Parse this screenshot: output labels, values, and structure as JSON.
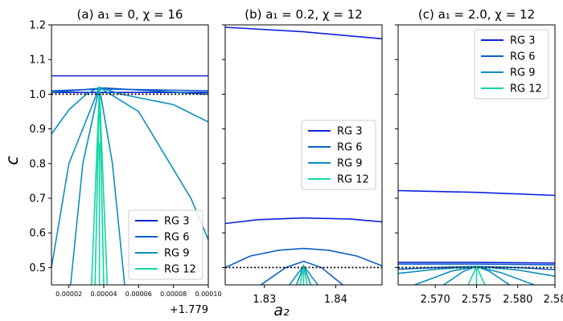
{
  "chart_data": [
    {
      "type": "line",
      "title": "(a) a₁ = 0, χ = 16",
      "ylabel": "c",
      "xlabel": "",
      "x_offset_label": "+1.779",
      "xlim": [
        1e-05,
        0.0001
      ],
      "ylim": [
        0.45,
        1.2
      ],
      "x_ticks": [
        "0.00002",
        "0.00004",
        "0.00006",
        "0.00008",
        "0.00010"
      ],
      "y_ticks": [
        "0.5",
        "0.6",
        "0.7",
        "0.8",
        "0.9",
        "1.0",
        "1.1",
        "1.2"
      ],
      "legend": [
        "RG 3",
        "RG 6",
        "RG 9",
        "RG 12"
      ],
      "legend_position": "lower-right",
      "reference_line_y": 1.0,
      "series": [
        {
          "name": "RG 3",
          "color": "#0b20e0",
          "x": [
            1e-05,
            0.0001
          ],
          "y": [
            1.053,
            1.053
          ]
        },
        {
          "name": "RG 3",
          "color": "#0b20e0",
          "x": [
            1e-05,
            0.0001
          ],
          "y": [
            1.005,
            1.005
          ]
        },
        {
          "name": "RG 6",
          "color": "#0a5fc8",
          "x": [
            1e-05,
            4e-05,
            0.0001
          ],
          "y": [
            1.01,
            1.015,
            1.01
          ]
        },
        {
          "name": "RG 6",
          "color": "#0a5fc8",
          "x": [
            1e-05,
            4e-05,
            0.0001
          ],
          "y": [
            1.005,
            1.018,
            1.0
          ]
        },
        {
          "name": "RG 9",
          "color": "#0a8fc0",
          "x": [
            1e-05,
            2e-05,
            3e-05,
            3.75e-05,
            5e-05,
            8e-05,
            0.0001
          ],
          "y": [
            0.885,
            0.955,
            1.0,
            1.02,
            1.0,
            0.97,
            0.92
          ]
        },
        {
          "name": "RG 9",
          "color": "#0a8fc0",
          "x": [
            1e-05,
            2e-05,
            3.75e-05,
            6e-05,
            9e-05,
            0.0001
          ],
          "y": [
            0.5,
            0.8,
            1.02,
            0.95,
            0.7,
            0.58
          ]
        },
        {
          "name": "RG 9",
          "color": "#0a8fc0",
          "x": [
            2.1e-05,
            2.8e-05,
            3.75e-05,
            4.5e-05,
            5.2e-05
          ],
          "y": [
            0.45,
            0.8,
            1.02,
            0.8,
            0.45
          ]
        },
        {
          "name": "RG 12",
          "color": "#11d6a6",
          "x": [
            3.3e-05,
            3.75e-05,
            4.2e-05
          ],
          "y": [
            0.45,
            1.02,
            0.45
          ]
        },
        {
          "name": "RG 12",
          "color": "#11d6a6",
          "x": [
            3.5e-05,
            3.75e-05,
            4e-05
          ],
          "y": [
            0.45,
            1.02,
            0.45
          ]
        },
        {
          "name": "RG 12",
          "color": "#11d6a6",
          "x": [
            3.75e-05,
            3.75e-05
          ],
          "y": [
            0.45,
            0.86
          ]
        }
      ]
    },
    {
      "type": "line",
      "title": "(b) a₁ = 0.2, χ = 12",
      "xlabel": "a₂",
      "ylabel": "",
      "xlim": [
        1.8245,
        1.8465
      ],
      "ylim": [
        0.45,
        1.2
      ],
      "x_ticks": [
        "1.83",
        "1.84"
      ],
      "legend": [
        "RG 3",
        "RG 6",
        "RG 9",
        "RG 12"
      ],
      "legend_position": "center-right",
      "reference_line_y": 0.5,
      "series": [
        {
          "name": "RG 3",
          "color": "#0b20e0",
          "x": [
            1.8245,
            1.8355,
            1.8465
          ],
          "y": [
            1.193,
            1.18,
            1.16
          ]
        },
        {
          "name": "RG 3",
          "color": "#0b20e0",
          "x": [
            1.8245,
            1.829,
            1.8355,
            1.842,
            1.8465
          ],
          "y": [
            0.627,
            0.638,
            0.643,
            0.64,
            0.632
          ]
        },
        {
          "name": "RG 6",
          "color": "#0a5fc8",
          "x": [
            1.8245,
            1.828,
            1.832,
            1.8355,
            1.839,
            1.843,
            1.8465
          ],
          "y": [
            0.5,
            0.533,
            0.55,
            0.555,
            0.55,
            0.533,
            0.505
          ]
        },
        {
          "name": "RG 6",
          "color": "#0a5fc8",
          "x": [
            1.8295,
            1.833,
            1.8355,
            1.838,
            1.841
          ],
          "y": [
            0.45,
            0.5,
            0.518,
            0.5,
            0.45
          ]
        },
        {
          "name": "RG 9",
          "color": "#0a8fc0",
          "x": [
            1.8335,
            1.8355,
            1.8375
          ],
          "y": [
            0.45,
            0.505,
            0.45
          ]
        },
        {
          "name": "RG 9",
          "color": "#0a8fc0",
          "x": [
            1.8345,
            1.8355,
            1.8365
          ],
          "y": [
            0.45,
            0.505,
            0.45
          ]
        },
        {
          "name": "RG 12",
          "color": "#11d6a6",
          "x": [
            1.835,
            1.8355,
            1.836
          ],
          "y": [
            0.45,
            0.505,
            0.45
          ]
        },
        {
          "name": "RG 12",
          "color": "#11d6a6",
          "x": [
            1.8355,
            1.8355
          ],
          "y": [
            0.45,
            0.505
          ]
        }
      ]
    },
    {
      "type": "line",
      "title": "(c) a₁ = 2.0, χ = 12",
      "xlabel": "",
      "ylabel": "",
      "xlim": [
        2.5655,
        2.5845
      ],
      "ylim": [
        0.45,
        1.2
      ],
      "x_ticks": [
        "2.570",
        "2.575",
        "2.580",
        "2.58"
      ],
      "legend": [
        "RG 3",
        "RG 6",
        "RG 9",
        "RG 12"
      ],
      "legend_position": "top-right",
      "reference_line_y": 0.5,
      "series": [
        {
          "name": "RG 3",
          "color": "#0b20e0",
          "x": [
            2.5655,
            2.575,
            2.5845
          ],
          "y": [
            0.722,
            0.717,
            0.708
          ]
        },
        {
          "name": "RG 3",
          "color": "#0b20e0",
          "x": [
            2.5655,
            2.575,
            2.5845
          ],
          "y": [
            0.515,
            0.515,
            0.513
          ]
        },
        {
          "name": "RG 6",
          "color": "#0a5fc8",
          "x": [
            2.5655,
            2.575,
            2.5845
          ],
          "y": [
            0.51,
            0.51,
            0.508
          ]
        },
        {
          "name": "RG 6",
          "color": "#0a5fc8",
          "x": [
            2.5655,
            2.57,
            2.575,
            2.58,
            2.5845
          ],
          "y": [
            0.495,
            0.5,
            0.503,
            0.5,
            0.494
          ]
        },
        {
          "name": "RG 9",
          "color": "#0a8fc0",
          "x": [
            2.5655,
            2.57,
            2.575,
            2.58,
            2.5845
          ],
          "y": [
            0.483,
            0.495,
            0.503,
            0.493,
            0.475
          ]
        },
        {
          "name": "RG 9",
          "color": "#0a8fc0",
          "x": [
            2.5675,
            2.572,
            2.575,
            2.578,
            2.582
          ],
          "y": [
            0.45,
            0.49,
            0.503,
            0.485,
            0.45
          ]
        },
        {
          "name": "RG 9",
          "color": "#0a8fc0",
          "x": [
            2.571,
            2.5735,
            2.575,
            2.5765,
            2.579
          ],
          "y": [
            0.45,
            0.49,
            0.503,
            0.49,
            0.45
          ]
        },
        {
          "name": "RG 12",
          "color": "#11d6a6",
          "x": [
            2.574,
            2.575,
            2.576
          ],
          "y": [
            0.45,
            0.503,
            0.45
          ]
        },
        {
          "name": "RG 12",
          "color": "#11d6a6",
          "x": [
            2.575,
            2.575
          ],
          "y": [
            0.45,
            0.503
          ]
        }
      ]
    }
  ]
}
